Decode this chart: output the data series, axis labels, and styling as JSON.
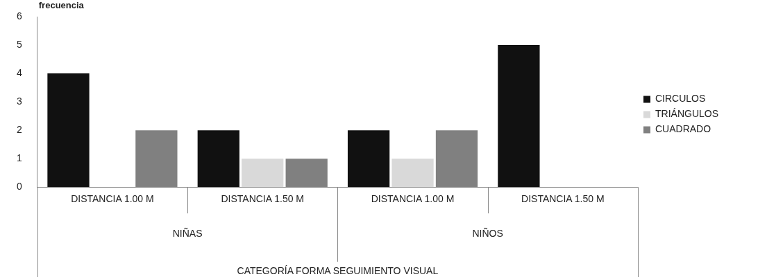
{
  "chart_data": {
    "type": "bar",
    "ylabel": "frecuencia",
    "categories": [
      "DISTANCIA 1.00 M",
      "DISTANCIA 1.50 M",
      "DISTANCIA 1.00 M",
      "DISTANCIA 1.50 M"
    ],
    "series": [
      {
        "name": "CIRCULOS",
        "color": "#111111",
        "values": [
          4,
          2,
          2,
          5
        ]
      },
      {
        "name": "TRIÁNGULOS",
        "color": "#d9d9d9",
        "values": [
          0,
          1,
          1,
          0
        ]
      },
      {
        "name": "CUADRADO",
        "color": "#808080",
        "values": [
          2,
          1,
          2,
          0
        ]
      }
    ],
    "annotations": [
      "NIÑAS",
      "NIÑOS",
      "CATEGORÍA FORMA SEGUIMIENTO VISUAL"
    ],
    "ylim": [
      0,
      6
    ],
    "yticks": [
      0,
      1,
      2,
      3,
      4,
      5,
      6
    ],
    "grid": false,
    "legend": "right"
  }
}
